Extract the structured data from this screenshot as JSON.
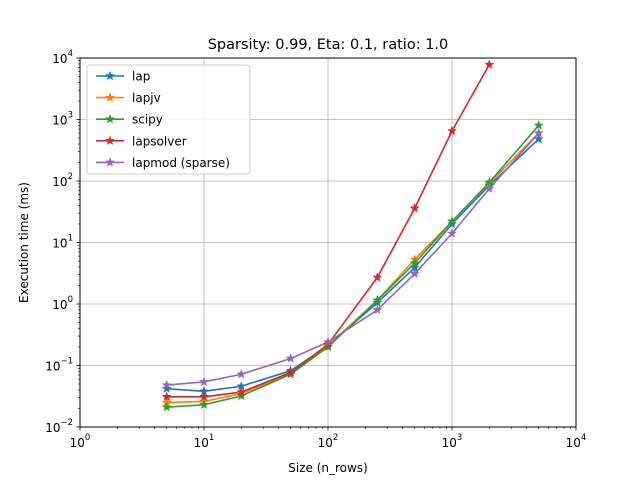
{
  "chart_data": {
    "type": "line",
    "title": "Sparsity: 0.99, Eta: 0.1, ratio: 1.0",
    "xlabel": "Size (n_rows)",
    "ylabel": "Execution time (ms)",
    "xscale": "log",
    "yscale": "log",
    "xlim": [
      1,
      10000
    ],
    "ylim": [
      0.01,
      10000
    ],
    "grid": true,
    "legend_position": "top-left",
    "x_ticks": [
      {
        "value": 1,
        "base": "10",
        "exp": "0"
      },
      {
        "value": 10,
        "base": "10",
        "exp": "1"
      },
      {
        "value": 100,
        "base": "10",
        "exp": "2"
      },
      {
        "value": 1000,
        "base": "10",
        "exp": "3"
      },
      {
        "value": 10000,
        "base": "10",
        "exp": "4"
      }
    ],
    "y_ticks": [
      {
        "value": 0.01,
        "base": "10",
        "exp": "−2"
      },
      {
        "value": 0.1,
        "base": "10",
        "exp": "−1"
      },
      {
        "value": 1,
        "base": "10",
        "exp": "0"
      },
      {
        "value": 10,
        "base": "10",
        "exp": "1"
      },
      {
        "value": 100,
        "base": "10",
        "exp": "2"
      },
      {
        "value": 1000,
        "base": "10",
        "exp": "3"
      },
      {
        "value": 10000,
        "base": "10",
        "exp": "4"
      }
    ],
    "series": [
      {
        "name": "lap",
        "color": "#1f77b4",
        "marker": "star",
        "x": [
          5,
          10,
          20,
          50,
          100,
          250,
          500,
          1000,
          2000,
          5000
        ],
        "y": [
          0.042,
          0.038,
          0.046,
          0.082,
          0.21,
          1.05,
          3.9,
          20,
          85,
          480
        ]
      },
      {
        "name": "lapjv",
        "color": "#ff7f0e",
        "marker": "star",
        "x": [
          5,
          10,
          20,
          50,
          100,
          250,
          500,
          1000,
          2000,
          5000
        ],
        "y": [
          0.025,
          0.026,
          0.035,
          0.073,
          0.21,
          1.15,
          5.3,
          22,
          92,
          600
        ]
      },
      {
        "name": "scipy",
        "color": "#2ca02c",
        "marker": "star",
        "x": [
          5,
          10,
          20,
          50,
          100,
          250,
          500,
          1000,
          2000,
          5000
        ],
        "y": [
          0.021,
          0.023,
          0.032,
          0.072,
          0.2,
          1.15,
          4.6,
          22,
          95,
          800
        ]
      },
      {
        "name": "lapsolver",
        "color": "#d62728",
        "marker": "star",
        "x": [
          5,
          10,
          20,
          50,
          100,
          250,
          500,
          1000,
          2000
        ],
        "y": [
          0.031,
          0.031,
          0.037,
          0.077,
          0.22,
          2.7,
          36,
          650,
          7800
        ]
      },
      {
        "name": "lapmod (sparse)",
        "color": "#9467bd",
        "marker": "star",
        "x": [
          5,
          10,
          20,
          50,
          100,
          250,
          500,
          1000,
          2000,
          5000
        ],
        "y": [
          0.048,
          0.054,
          0.072,
          0.13,
          0.24,
          0.8,
          3.1,
          14,
          75,
          600
        ]
      }
    ]
  }
}
